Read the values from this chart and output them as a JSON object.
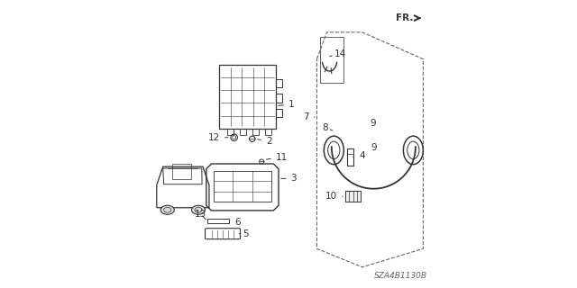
{
  "title": "",
  "background_color": "#ffffff",
  "image_code": "SZA4B1130B",
  "fr_label": "FR.",
  "line_color": "#333333",
  "label_color": "#222222",
  "label_fontsize": 7.5
}
